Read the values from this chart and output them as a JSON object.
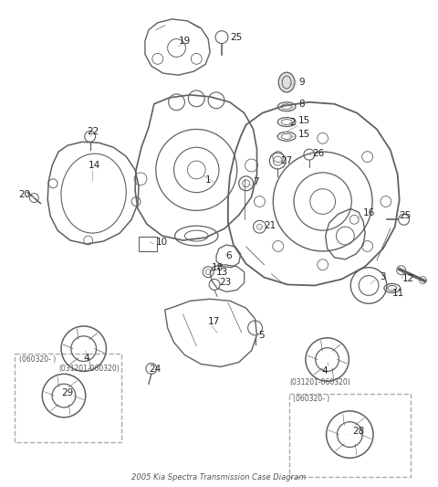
{
  "title": "2005 Kia Spectra Transmission Case Diagram",
  "bg_color": "#ffffff",
  "lc": "#606060",
  "tc": "#222222"
}
